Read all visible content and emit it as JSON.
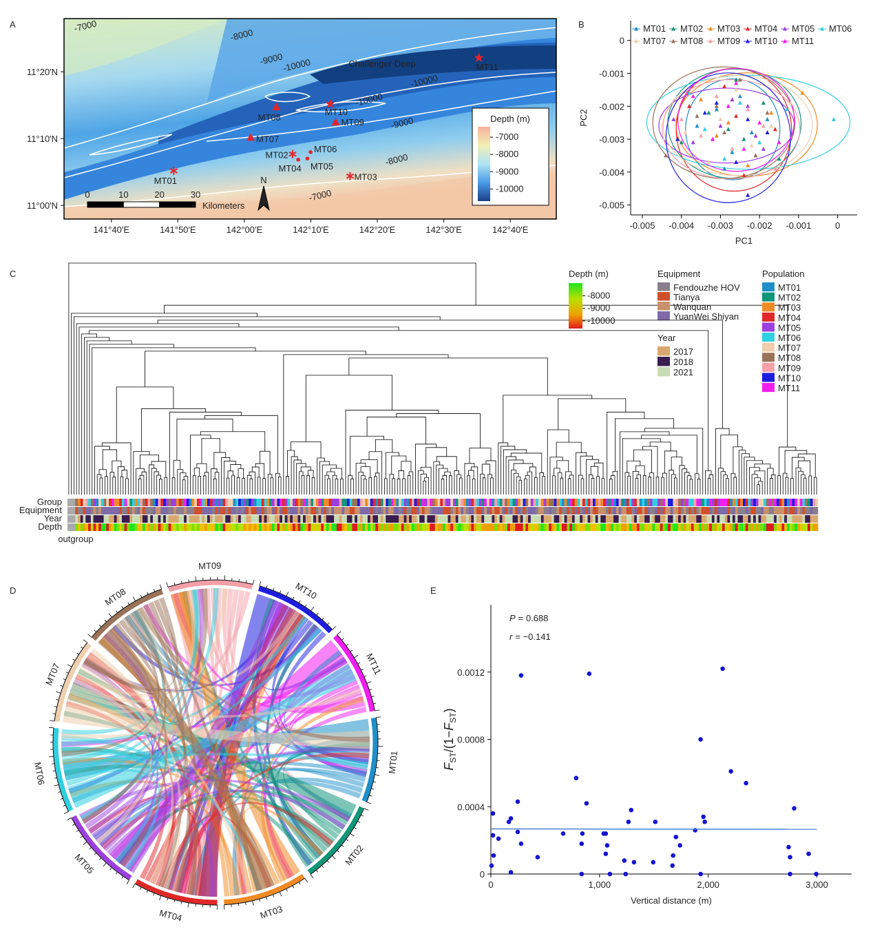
{
  "chart_data": [
    {
      "panel": "A",
      "type": "map",
      "title": "Challenger Deep",
      "xlim": [
        141.548,
        142.782
      ],
      "ylim": [
        10.966,
        11.466
      ],
      "xticks": [
        {
          "value": 141.6667,
          "label": "141°40′E"
        },
        {
          "value": 141.8333,
          "label": "141°50′E"
        },
        {
          "value": 142,
          "label": "142°00′E"
        },
        {
          "value": 142.1667,
          "label": "142°10′E"
        },
        {
          "value": 142.3333,
          "label": "142°20′E"
        },
        {
          "value": 142.5,
          "label": "142°30′E"
        },
        {
          "value": 142.6667,
          "label": "142°40′E"
        }
      ],
      "yticks": [
        {
          "value": 11,
          "label": "11°00′N"
        },
        {
          "value": 11.1667,
          "label": "11°10′N"
        },
        {
          "value": 11.3333,
          "label": "11°20′N"
        }
      ],
      "sites": {
        "names": [
          "MT01",
          "MT02",
          "MT03",
          "MT04",
          "MT05",
          "MT06",
          "MT07",
          "MT08",
          "MT09",
          "MT10",
          "MT11"
        ],
        "x": [
          141.823,
          142.121,
          142.265,
          142.135,
          142.158,
          142.166,
          142.016,
          142.08,
          142.229,
          142.215,
          142.588
        ],
        "y": [
          11.086,
          11.128,
          11.073,
          11.114,
          11.117,
          11.133,
          11.17,
          11.246,
          11.208,
          11.253,
          11.368
        ],
        "markers": [
          "asterisk",
          "asterisk",
          "asterisk",
          "dot",
          "dot",
          "dot",
          "triangle",
          "triangle",
          "triangle",
          "star",
          "star"
        ],
        "color": "#e3242b"
      },
      "contour_labels": [
        -7000,
        -8000,
        -9000,
        -10000,
        -10000,
        -10000,
        -9000,
        -8000,
        -7000
      ],
      "colorbar": {
        "title": "Depth (m)",
        "lim": [
          -10700,
          -6400
        ],
        "ticks": [
          -7000,
          -8000,
          -9000,
          -10000
        ]
      },
      "scale_bar": {
        "ticks": [
          0,
          10,
          20,
          30
        ],
        "unit": "Kilometers"
      },
      "north": "N"
    },
    {
      "panel": "B",
      "type": "scatter",
      "x_label": "PC1",
      "y_label": "PC2",
      "xlim": [
        -0.0053,
        0.0005
      ],
      "ylim": [
        -0.0053,
        0.0006
      ],
      "xticks": [
        -0.005,
        -0.004,
        -0.003,
        -0.002,
        -0.001,
        0
      ],
      "yticks": [
        0,
        -0.001,
        -0.002,
        -0.003,
        -0.004,
        -0.005
      ],
      "legend": "top",
      "series": [
        {
          "name": "MT01",
          "color": "#1f8fc9",
          "x": [
            -0.0031,
            -0.0022,
            -0.0027,
            -0.0018,
            -0.0036,
            -0.0025,
            -0.0029
          ],
          "values": [
            -0.0021,
            -0.0028,
            -0.0034,
            -0.0024,
            -0.0026,
            -0.0017,
            -0.0039
          ]
        },
        {
          "name": "MT02",
          "color": "#12967a",
          "x": [
            -0.0024,
            -0.0033,
            -0.0019,
            -0.0028,
            -0.0015,
            -0.004,
            -0.0026
          ],
          "values": [
            -0.003,
            -0.0022,
            -0.0019,
            -0.0027,
            -0.0036,
            -0.0031,
            -0.0012
          ]
        },
        {
          "name": "MT03",
          "color": "#f08a24",
          "x": [
            -0.0028,
            -0.002,
            -0.0035,
            -0.0009,
            -0.0023,
            -0.0031,
            -0.0017
          ],
          "values": [
            -0.0025,
            -0.0031,
            -0.0018,
            -0.0016,
            -0.0038,
            -0.0029,
            -0.0022
          ]
        },
        {
          "name": "MT04",
          "color": "#e02828",
          "x": [
            -0.0026,
            -0.0032,
            -0.0021,
            -0.0038,
            -0.0029,
            -0.0016,
            -0.0024
          ],
          "values": [
            -0.0023,
            -0.003,
            -0.0035,
            -0.002,
            -0.0014,
            -0.0027,
            -0.0041
          ]
        },
        {
          "name": "MT05",
          "color": "#9b3fe0",
          "x": [
            -0.003,
            -0.0023,
            -0.0037,
            -0.0019,
            -0.0027,
            -0.0042,
            -0.0021
          ],
          "values": [
            -0.0026,
            -0.002,
            -0.0031,
            -0.0033,
            -0.0018,
            -0.0024,
            -0.0029
          ]
        },
        {
          "name": "MT06",
          "color": "#2fd0e0",
          "x": [
            -0.0025,
            -0.0034,
            -0.0001,
            -0.002,
            -0.0029,
            -0.0013,
            -0.0038
          ],
          "values": [
            -0.0019,
            -0.0027,
            -0.0024,
            -0.0031,
            -0.0036,
            -0.0021,
            -0.0016
          ]
        },
        {
          "name": "MT07",
          "color": "#efcfae",
          "x": [
            -0.0022,
            -0.003,
            -0.0026,
            -0.0039,
            -0.0017,
            -0.0033,
            -0.0012
          ],
          "values": [
            -0.0032,
            -0.0024,
            -0.0015,
            -0.0028,
            -0.0026,
            -0.0037,
            -0.0019
          ]
        },
        {
          "name": "MT08",
          "color": "#9a7258",
          "x": [
            -0.0029,
            -0.0021,
            -0.0036,
            -0.0025,
            -0.0044,
            -0.0018,
            -0.0031
          ],
          "values": [
            -0.0028,
            -0.0035,
            -0.0023,
            -0.0012,
            -0.0035,
            -0.0022,
            -0.002
          ]
        },
        {
          "name": "MT09",
          "color": "#f4a0a8",
          "x": [
            -0.0027,
            -0.0035,
            -0.0019,
            -0.0031,
            -0.0023,
            -0.0016,
            -0.004
          ],
          "values": [
            -0.0033,
            -0.0029,
            -0.0026,
            -0.0017,
            -0.0021,
            -0.0039,
            -0.0024
          ]
        },
        {
          "name": "MT10",
          "color": "#1d1de0",
          "x": [
            -0.0023,
            -0.0031,
            -0.0026,
            -0.0041,
            -0.0018,
            -0.0034,
            -0.0023
          ],
          "values": [
            -0.0024,
            -0.0019,
            -0.0037,
            -0.003,
            -0.0028,
            -0.0022,
            -0.0047
          ]
        },
        {
          "name": "MT11",
          "color": "#f01ef0",
          "x": [
            -0.0032,
            -0.0024,
            -0.0028,
            -0.002,
            -0.0037,
            -0.0015,
            -0.0026
          ],
          "values": [
            -0.003,
            -0.0033,
            -0.002,
            -0.0025,
            -0.0017,
            -0.0031,
            -0.0013
          ]
        }
      ]
    },
    {
      "panel": "C",
      "type": "dendrogram",
      "row_labels": [
        "Group",
        "Equipment",
        "Year",
        "Depth"
      ],
      "outgroup": "outgroup",
      "depth_legend": {
        "title": "Depth (m)",
        "lim": [
          -10600,
          -7000
        ],
        "ticks": [
          -8000,
          -9000,
          -10000
        ]
      },
      "equipment": {
        "title": "Equipment",
        "names": [
          "Fendouzhe HOV",
          "Tianya",
          "Wanquan",
          "YuanWei Shiyan"
        ],
        "colors": [
          "#8a7f8c",
          "#d0502b",
          "#c8916b",
          "#7e6aa8"
        ]
      },
      "year": {
        "title": "Year",
        "names": [
          "2017",
          "2018",
          "2021"
        ],
        "colors": [
          "#d9a870",
          "#3a1c4e",
          "#c9dcb5"
        ]
      },
      "population": {
        "title": "Population",
        "names": [
          "MT01",
          "MT02",
          "MT03",
          "MT04",
          "MT05",
          "MT06",
          "MT07",
          "MT08",
          "MT09",
          "MT10",
          "MT11"
        ],
        "colors": [
          "#1f8fc9",
          "#12967a",
          "#f08a24",
          "#e02828",
          "#9b3fe0",
          "#2fd0e0",
          "#efcfae",
          "#9a7258",
          "#f4a0a8",
          "#1d1de0",
          "#f01ef0"
        ]
      }
    },
    {
      "panel": "D",
      "type": "chord",
      "sectors": [
        "MT09",
        "MT10",
        "MT11",
        "MT01",
        "MT02",
        "MT03",
        "MT04",
        "MT05",
        "MT06",
        "MT07",
        "MT08"
      ],
      "colors": [
        "#f4a0a8",
        "#1d1de0",
        "#f01ef0",
        "#1f8fc9",
        "#12967a",
        "#f08a24",
        "#e02828",
        "#9b3fe0",
        "#2fd0e0",
        "#efcfae",
        "#9a7258"
      ]
    },
    {
      "panel": "E",
      "type": "scatter",
      "color": "#1414d2",
      "x": [
        19,
        19,
        6,
        25,
        70,
        165,
        184,
        184,
        247,
        278,
        247,
        278,
        430,
        665,
        785,
        842,
        835,
        880,
        905,
        835,
        1038,
        1057,
        1057,
        1070,
        1095,
        1266,
        1291,
        1228,
        1317,
        1240,
        1513,
        1494,
        1671,
        1677,
        1740,
        1703,
        1880,
        1930,
        1956,
        1968,
        1930,
        2133,
        2209,
        2348,
        2740,
        2753,
        2791,
        2924,
        2994,
        2753
      ],
      "values": [
        0.00036,
        0.00023,
        5e-05,
        0.00011,
        0.00021,
        0.00031,
        0.00033,
        1e-05,
        0.00043,
        0.00118,
        0.00025,
        0.00018,
        0.0001,
        0.00024,
        0.00057,
        0.00024,
        0.00018,
        0.00042,
        0.00119,
        0,
        0.00024,
        0.00024,
        0.00012,
        0.00017,
        0,
        0.00031,
        0.00038,
        8e-05,
        7e-05,
        0,
        0.00031,
        7e-05,
        5e-05,
        0.00011,
        0.00017,
        0.00022,
        0.00026,
        0.0008,
        0.00034,
        0.00031,
        0,
        0.00122,
        0.00061,
        0.00054,
        0.00016,
        0.0001,
        0.00039,
        0.00012,
        0,
        0
      ],
      "fit": {
        "x": [
          0,
          3000
        ],
        "y": [
          0.000268,
          0.000266
        ],
        "color": "#4f7fd2"
      },
      "stats": [
        {
          "symbol": "P",
          "text": "= 0.688"
        },
        {
          "symbol": "r",
          "text": "= −0.141"
        }
      ],
      "x_label": "Vertical distance (m)",
      "y_label": [
        "F",
        "ST",
        "/(1−",
        "F",
        "ST",
        ")"
      ],
      "xlim": [
        0,
        3320
      ],
      "ylim": [
        0,
        0.0016
      ],
      "xticks": [
        0,
        {
          "value": 1000,
          "label": "1,000"
        },
        {
          "value": 2000,
          "label": "2,000"
        },
        {
          "value": 3000,
          "label": "3,000"
        }
      ],
      "yticks": [
        0,
        0.0004,
        0.0008,
        0.0012
      ]
    }
  ]
}
